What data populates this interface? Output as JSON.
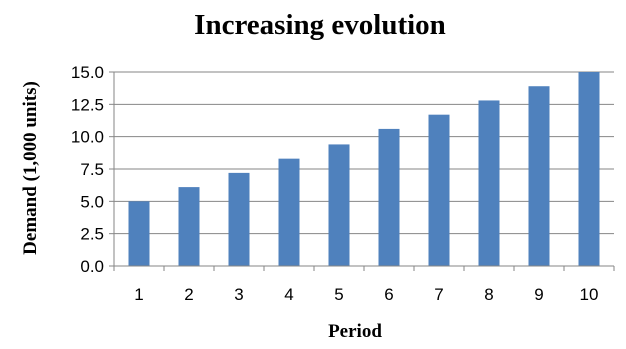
{
  "chart_data": {
    "type": "bar",
    "title": "Increasing evolution",
    "xlabel": "Period",
    "ylabel": "Demand  (1,000 units)",
    "categories": [
      "1",
      "2",
      "3",
      "4",
      "5",
      "6",
      "7",
      "8",
      "9",
      "10"
    ],
    "values": [
      5.0,
      6.1,
      7.2,
      8.3,
      9.4,
      10.6,
      11.7,
      12.8,
      13.9,
      15.0
    ],
    "ylim": [
      0,
      15
    ],
    "yticks": [
      "0.0",
      "2.5",
      "5.0",
      "7.5",
      "10.0",
      "12.5",
      "15.0"
    ],
    "grid": "horizontal",
    "legend": "none",
    "bar_color": "#4F81BD"
  }
}
